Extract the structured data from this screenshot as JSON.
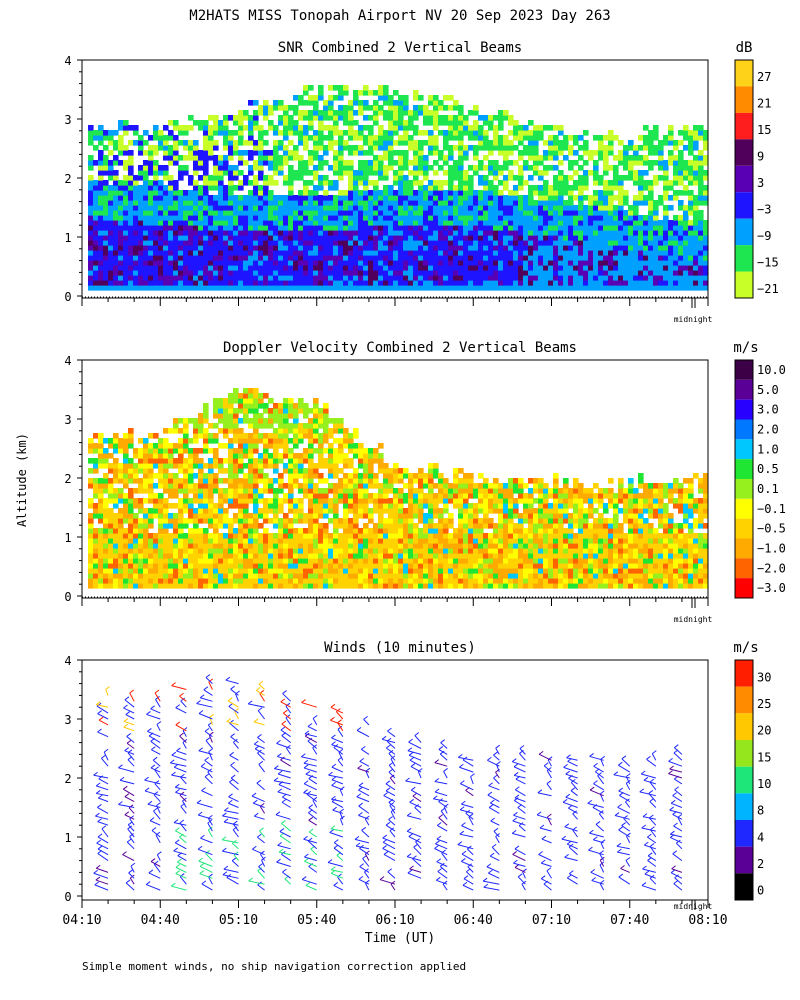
{
  "figure": {
    "title": "M2HATS MISS Tonopah Airport NV  20 Sep 2023 Day 263",
    "ylabel": "Altitude (km)",
    "xlabel": "Time (UT)",
    "footnote": "Simple moment winds, no ship navigation correction applied",
    "midnight_label": "midnight"
  },
  "chart_data": [
    {
      "type": "heatmap",
      "title": "SNR Combined 2 Vertical Beams",
      "unit": "dB",
      "ylim": [
        0,
        4
      ],
      "y_ticks": [
        "0",
        "1",
        "2",
        "3",
        "4"
      ],
      "x_range": [
        "04:10",
        "08:10"
      ],
      "colorbar": {
        "labels": [
          "27",
          "21",
          "15",
          "9",
          "3",
          "−3",
          "−9",
          "−15",
          "−21"
        ],
        "colors": [
          "#ffd21a",
          "#ff8c00",
          "#ff1e1e",
          "#50005a",
          "#5a00b4",
          "#1e14ff",
          "#00a0ff",
          "#1ee650",
          "#c8ff28"
        ]
      },
      "features": {
        "strong_layer_top_km": [
          1.3,
          1.1,
          1.1,
          1.2,
          0.9,
          0.5
        ],
        "cloud_top_km": [
          2.8,
          3.0,
          3.6,
          3.2,
          2.7,
          2.8
        ]
      }
    },
    {
      "type": "heatmap",
      "title": "Doppler Velocity Combined 2 Vertical Beams",
      "unit": "m/s",
      "ylim": [
        0,
        4
      ],
      "y_ticks": [
        "0",
        "1",
        "2",
        "3",
        "4"
      ],
      "x_range": [
        "04:10",
        "08:10"
      ],
      "colorbar": {
        "labels": [
          "10.0",
          "5.0",
          "3.0",
          "2.0",
          "1.0",
          "0.5",
          "0.1",
          "−0.1",
          "−0.5",
          "−1.0",
          "−2.0",
          "−3.0"
        ],
        "colors": [
          "#3c0046",
          "#5a0096",
          "#2800ff",
          "#0078ff",
          "#00c8ff",
          "#1ee632",
          "#96f01e",
          "#ffff00",
          "#ffd200",
          "#ffaa00",
          "#ff6400",
          "#ff0000"
        ]
      }
    },
    {
      "type": "scatter",
      "title": "Winds (10 minutes)",
      "unit": "m/s",
      "ylim": [
        0,
        4
      ],
      "y_ticks": [
        "0",
        "1",
        "2",
        "3",
        "4"
      ],
      "x_ticks": [
        "04:10",
        "04:40",
        "05:10",
        "05:40",
        "06:10",
        "06:40",
        "07:10",
        "07:40",
        "08:10"
      ],
      "colorbar": {
        "labels": [
          "30",
          "25",
          "20",
          "15",
          "10",
          "8",
          "4",
          "2",
          "0"
        ],
        "colors": [
          "#ff1e00",
          "#ff8c00",
          "#ffc800",
          "#96e61e",
          "#1ee678",
          "#00b4ff",
          "#1e28ff",
          "#5a0096",
          "#000000"
        ]
      }
    }
  ]
}
